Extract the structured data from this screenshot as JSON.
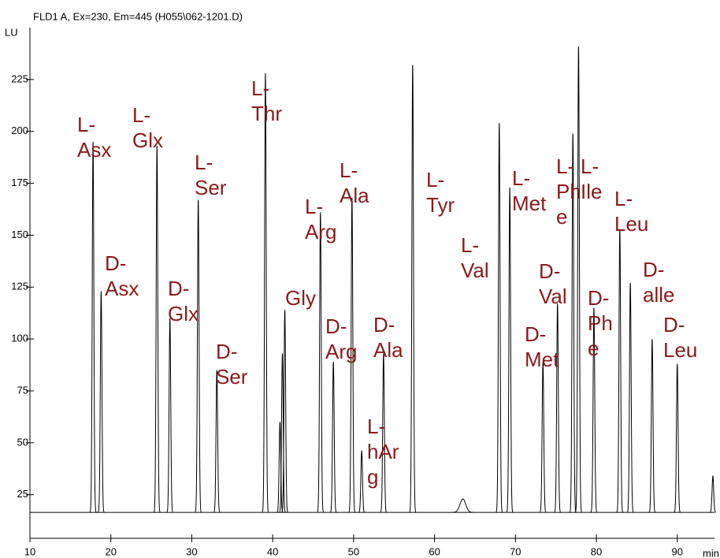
{
  "chart_data": {
    "type": "chromatogram",
    "title": "FLD1 A, Ex=230, Em=445 (H055\\062-1201.D)",
    "y_label": "LU",
    "x_label": "min",
    "xlim": [
      10,
      94.6
    ],
    "xticks": [
      10,
      20,
      30,
      40,
      50,
      60,
      70,
      80,
      90
    ],
    "ylim": [
      4,
      250
    ],
    "yticks": [
      25,
      50,
      75,
      100,
      125,
      150,
      175,
      200,
      225
    ],
    "baseline": 16.5,
    "color": "#000000",
    "label_color": "#8b1a1a",
    "x": [
      17.8,
      18.8,
      25.7,
      27.3,
      30.8,
      33.1,
      39.1,
      40.9,
      41.2,
      41.5,
      45.9,
      47.5,
      49.8,
      51.0,
      53.7,
      57.3,
      63.5,
      68.0,
      69.3,
      73.4,
      75.2,
      77.1,
      77.8,
      79.7,
      82.9,
      84.2,
      86.9,
      90.0,
      94.4
    ],
    "values": [
      195,
      123,
      193,
      110,
      167,
      85,
      228,
      60,
      93,
      114,
      161,
      89,
      168,
      46,
      93,
      232,
      23,
      204,
      173,
      89,
      117,
      199,
      241,
      115,
      153,
      127,
      100,
      88,
      34
    ],
    "labels": [
      "L-Asx",
      "D-Asx",
      "L-Glx",
      "D-Glx",
      "L-Ser",
      "D-Ser",
      "L-Thr",
      null,
      null,
      "Gly",
      "L-Arg",
      "D-Arg",
      "L-Ala",
      "L-hArg",
      "D-Ala",
      "L-Tyr",
      null,
      "L-Val",
      "L-Met",
      "D-Met",
      "D-Val",
      "L-Phe",
      "L-Ile",
      "D-Phe",
      "L-Leu",
      "D-alle",
      null,
      "D-Leu",
      null
    ]
  }
}
